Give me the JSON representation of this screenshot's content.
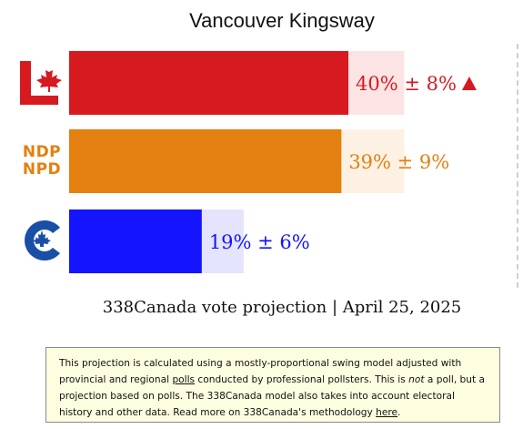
{
  "title": "Vancouver Kingsway",
  "subtitle": "338Canada vote projection | April 25, 2025",
  "chart_data": {
    "type": "bar",
    "orientation": "horizontal",
    "categories": [
      "Liberal",
      "NDP",
      "Conservative"
    ],
    "series": [
      {
        "values": [
          40,
          39,
          19
        ],
        "margins": [
          8,
          9,
          6
        ],
        "labels": [
          "40% ± 8%",
          "39% ± 9%",
          "19% ± 6%"
        ],
        "trend": [
          "up",
          "",
          ""
        ],
        "colors": [
          "#d71920",
          "#e3800f",
          "#1414ff"
        ],
        "range_colors": [
          "#fde4e4",
          "#fdf1e4",
          "#e4e4fd"
        ]
      }
    ],
    "xlim": [
      0,
      60
    ],
    "grid": false,
    "legend": "none"
  },
  "logos": {
    "ndp_line1": "NDP",
    "ndp_line2": "NPD"
  },
  "note": {
    "t1": "This projection is calculated using a mostly-proportional swing model adjusted with provincial and regional ",
    "link_polls": "polls",
    "t2": " conducted by professional pollsters. This is ",
    "em_not": "not",
    "t3": " a poll, but a projection based on polls. The 338Canada model also takes into account electoral history and other data. Read more on 338Canada's methodology ",
    "link_here": "here",
    "t4": "."
  }
}
